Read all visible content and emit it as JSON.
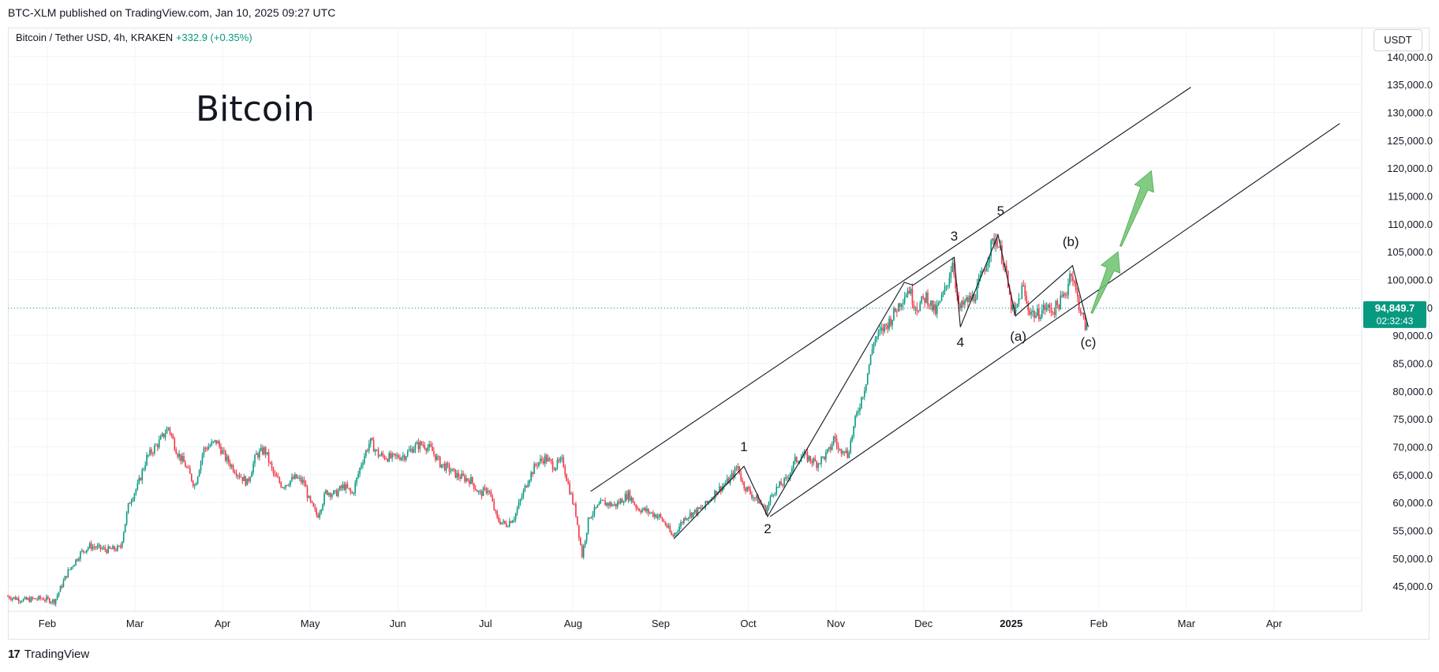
{
  "header": {
    "published": "BTC-XLM published on TradingView.com, Jan 10, 2025 09:27 UTC",
    "symbol": "Bitcoin / Tether USD, 4h, KRAKEN",
    "change": "+332.9 (+0.35%)",
    "currency": "USDT"
  },
  "footer": {
    "brand": "TradingView",
    "brand_mark": "17"
  },
  "colors": {
    "up": "#089981",
    "down": "#f23645",
    "line": "#131722",
    "arrow": "#6cc26c",
    "grid": "#f0f3fa"
  },
  "chart_data": {
    "type": "candlestick",
    "title": "Bitcoin",
    "x_unit": "months since 2024-01-01",
    "xlim": [
      0.55,
      16.0
    ],
    "ylim": [
      40500,
      145200
    ],
    "y_ticks": [
      45000,
      50000,
      55000,
      60000,
      65000,
      70000,
      75000,
      80000,
      85000,
      90000,
      95000,
      100000,
      105000,
      110000,
      115000,
      120000,
      125000,
      130000,
      135000,
      140000
    ],
    "y_tick_labels": [
      "45,000.0",
      "50,000.0",
      "55,000.0",
      "60,000.0",
      "65,000.0",
      "70,000.0",
      "75,000.0",
      "80,000.0",
      "85,000.0",
      "90,000.0",
      "95,000.0",
      "100,000.0",
      "105,000.0",
      "110,000.0",
      "115,000.0",
      "120,000.0",
      "125,000.0",
      "130,000.0",
      "135,000.0",
      "140,000.0"
    ],
    "x_ticks": [
      {
        "x": 1.0,
        "label": "Feb"
      },
      {
        "x": 2.0,
        "label": "Mar"
      },
      {
        "x": 3.0,
        "label": "Apr"
      },
      {
        "x": 4.0,
        "label": "May"
      },
      {
        "x": 5.0,
        "label": "Jun"
      },
      {
        "x": 6.0,
        "label": "Jul"
      },
      {
        "x": 7.0,
        "label": "Aug"
      },
      {
        "x": 8.0,
        "label": "Sep"
      },
      {
        "x": 9.0,
        "label": "Oct"
      },
      {
        "x": 10.0,
        "label": "Nov"
      },
      {
        "x": 11.0,
        "label": "Dec"
      },
      {
        "x": 12.0,
        "label": "2025"
      },
      {
        "x": 13.0,
        "label": "Feb"
      },
      {
        "x": 14.0,
        "label": "Mar"
      },
      {
        "x": 15.0,
        "label": "Apr"
      }
    ],
    "price_path": [
      [
        0.55,
        43200
      ],
      [
        0.75,
        42500
      ],
      [
        0.95,
        42800
      ],
      [
        1.1,
        42300
      ],
      [
        1.25,
        47500
      ],
      [
        1.4,
        51000
      ],
      [
        1.5,
        52200
      ],
      [
        1.7,
        51500
      ],
      [
        1.85,
        51800
      ],
      [
        1.95,
        60000
      ],
      [
        2.05,
        63000
      ],
      [
        2.15,
        68000
      ],
      [
        2.3,
        71000
      ],
      [
        2.4,
        73500
      ],
      [
        2.5,
        69000
      ],
      [
        2.6,
        66500
      ],
      [
        2.7,
        63000
      ],
      [
        2.8,
        69500
      ],
      [
        2.95,
        71000
      ],
      [
        3.05,
        68000
      ],
      [
        3.15,
        66000
      ],
      [
        3.3,
        63500
      ],
      [
        3.4,
        68500
      ],
      [
        3.5,
        69500
      ],
      [
        3.6,
        65000
      ],
      [
        3.7,
        63000
      ],
      [
        3.85,
        64500
      ],
      [
        3.95,
        63500
      ],
      [
        4.0,
        60500
      ],
      [
        4.1,
        57500
      ],
      [
        4.2,
        62000
      ],
      [
        4.3,
        61500
      ],
      [
        4.4,
        63000
      ],
      [
        4.5,
        61500
      ],
      [
        4.6,
        67000
      ],
      [
        4.7,
        71000
      ],
      [
        4.8,
        68500
      ],
      [
        4.95,
        68000
      ],
      [
        5.1,
        68500
      ],
      [
        5.2,
        70000
      ],
      [
        5.3,
        70500
      ],
      [
        5.4,
        69500
      ],
      [
        5.5,
        67000
      ],
      [
        5.6,
        66000
      ],
      [
        5.7,
        64800
      ],
      [
        5.85,
        64000
      ],
      [
        5.95,
        61500
      ],
      [
        6.05,
        62500
      ],
      [
        6.15,
        57000
      ],
      [
        6.25,
        56000
      ],
      [
        6.35,
        57500
      ],
      [
        6.5,
        64000
      ],
      [
        6.6,
        67000
      ],
      [
        6.7,
        68000
      ],
      [
        6.8,
        66500
      ],
      [
        6.9,
        67500
      ],
      [
        6.95,
        64000
      ],
      [
        7.05,
        58000
      ],
      [
        7.12,
        50500
      ],
      [
        7.2,
        57500
      ],
      [
        7.35,
        60000
      ],
      [
        7.5,
        59500
      ],
      [
        7.65,
        61500
      ],
      [
        7.75,
        59000
      ],
      [
        7.85,
        58500
      ],
      [
        8.0,
        57500
      ],
      [
        8.08,
        56000
      ],
      [
        8.15,
        53800
      ],
      [
        8.3,
        57500
      ],
      [
        8.5,
        59000
      ],
      [
        8.65,
        62000
      ],
      [
        8.8,
        64000
      ],
      [
        8.9,
        66500
      ],
      [
        8.95,
        63500
      ],
      [
        9.05,
        61500
      ],
      [
        9.15,
        60000
      ],
      [
        9.22,
        58500
      ],
      [
        9.3,
        62000
      ],
      [
        9.45,
        64000
      ],
      [
        9.55,
        67500
      ],
      [
        9.65,
        68500
      ],
      [
        9.8,
        67000
      ],
      [
        9.9,
        68500
      ],
      [
        9.95,
        69500
      ],
      [
        10.0,
        72000
      ],
      [
        10.05,
        69000
      ],
      [
        10.1,
        70000
      ],
      [
        10.15,
        68500
      ],
      [
        10.25,
        75500
      ],
      [
        10.35,
        81000
      ],
      [
        10.45,
        89000
      ],
      [
        10.55,
        91000
      ],
      [
        10.65,
        93000
      ],
      [
        10.75,
        96000
      ],
      [
        10.85,
        98500
      ],
      [
        10.9,
        96000
      ],
      [
        10.95,
        95000
      ],
      [
        11.05,
        97000
      ],
      [
        11.15,
        94000
      ],
      [
        11.25,
        97500
      ],
      [
        11.3,
        100000
      ],
      [
        11.35,
        103500
      ],
      [
        11.42,
        94500
      ],
      [
        11.5,
        96000
      ],
      [
        11.6,
        97000
      ],
      [
        11.7,
        101500
      ],
      [
        11.8,
        106500
      ],
      [
        11.85,
        107500
      ],
      [
        11.95,
        102000
      ],
      [
        12.0,
        96500
      ],
      [
        12.05,
        93500
      ],
      [
        12.1,
        96000
      ],
      [
        12.15,
        99000
      ],
      [
        12.2,
        95000
      ],
      [
        12.3,
        93500
      ],
      [
        12.4,
        95000
      ],
      [
        12.5,
        94500
      ],
      [
        12.6,
        96500
      ],
      [
        12.65,
        98000
      ],
      [
        12.7,
        102000
      ],
      [
        12.75,
        98000
      ],
      [
        12.8,
        95000
      ],
      [
        12.85,
        92000
      ],
      [
        12.88,
        91500
      ]
    ],
    "annotations": {
      "channel_upper": [
        [
          7.2,
          62000
        ],
        [
          14.05,
          134500
        ]
      ],
      "channel_lower": [
        [
          9.25,
          57500
        ],
        [
          15.75,
          128000
        ]
      ],
      "impulse": [
        [
          8.15,
          53500
        ],
        [
          8.95,
          66500
        ],
        [
          9.22,
          57500
        ],
        [
          10.78,
          99500
        ],
        [
          10.88,
          99000
        ],
        [
          11.35,
          104000
        ],
        [
          11.42,
          91500
        ],
        [
          11.85,
          108000
        ],
        [
          12.05,
          93500
        ],
        [
          12.7,
          102500
        ],
        [
          12.88,
          91500
        ]
      ],
      "labels": [
        {
          "x": 8.95,
          "y": 69200,
          "text": "1"
        },
        {
          "x": 9.22,
          "y": 54500,
          "text": "2"
        },
        {
          "x": 11.35,
          "y": 107000,
          "text": "3"
        },
        {
          "x": 11.42,
          "y": 88000,
          "text": "4"
        },
        {
          "x": 11.88,
          "y": 111500,
          "text": "5"
        },
        {
          "x": 12.08,
          "y": 89000,
          "text": "(a)"
        },
        {
          "x": 12.68,
          "y": 106000,
          "text": "(b)"
        },
        {
          "x": 12.88,
          "y": 88000,
          "text": "(c)"
        }
      ],
      "arrows": [
        [
          [
            12.92,
            94000
          ],
          [
            13.22,
            105000
          ]
        ],
        [
          [
            13.25,
            106000
          ],
          [
            13.6,
            119500
          ]
        ]
      ]
    },
    "last_price": 94849.7,
    "last_price_label": "94,849.7",
    "countdown": "02:32:43"
  }
}
